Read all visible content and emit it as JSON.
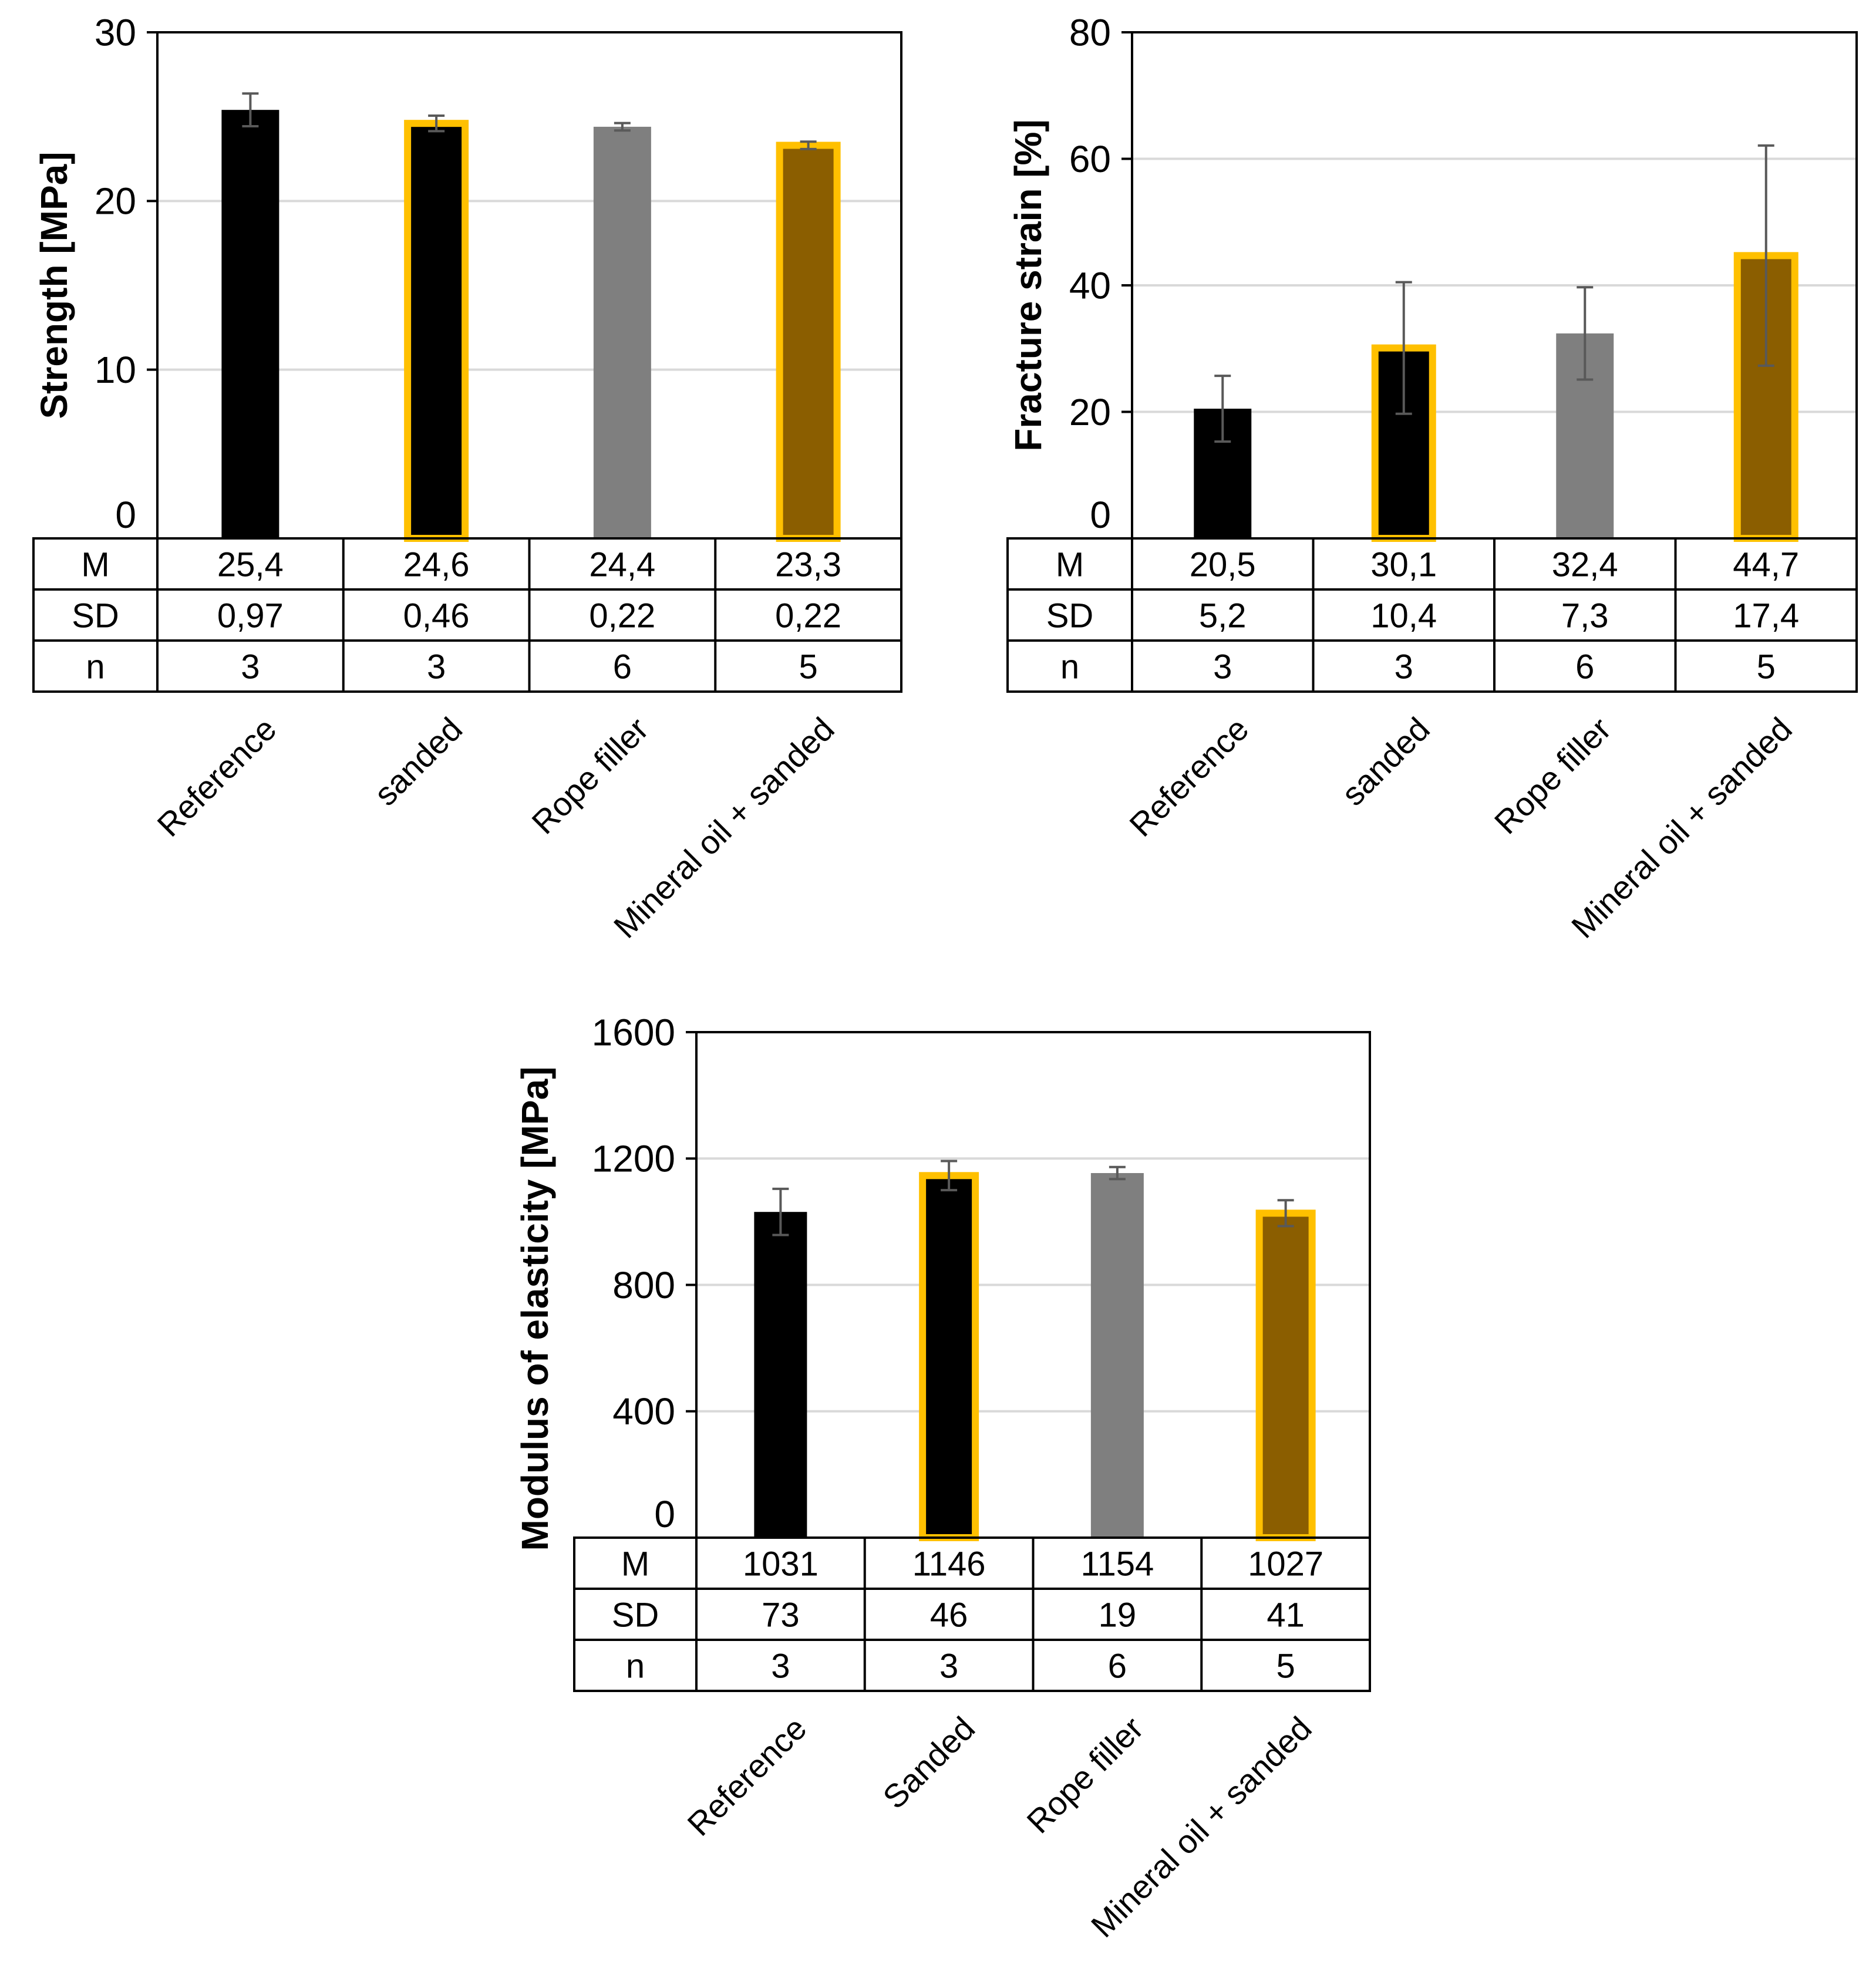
{
  "colors": {
    "black_bar": "#000000",
    "gray_bar": "#7f7f7f",
    "brown_bar": "#8b5e00",
    "highlight_border": "#ffc000",
    "gridline": "#d9d9d9",
    "error_bar": "#595959",
    "axis": "#000000"
  },
  "chart_data": [
    {
      "id": "strength",
      "type": "bar",
      "title": "",
      "ylabel": "Strength [MPa]",
      "ylim": [
        0,
        30
      ],
      "yticks": [
        "0",
        "10",
        "20",
        "30"
      ],
      "ytick_values": [
        0,
        10,
        20,
        30
      ],
      "grid": true,
      "categories": [
        "Reference",
        "sanded",
        "Rope filler",
        "Mineral oil + sanded"
      ],
      "values": [
        25.4,
        24.6,
        24.4,
        23.3
      ],
      "errors": [
        0.97,
        0.46,
        0.22,
        0.22
      ],
      "fills": [
        "black",
        "black",
        "gray",
        "brown"
      ],
      "highlighted": [
        false,
        true,
        false,
        true
      ],
      "table": {
        "row_labels": [
          "M",
          "SD",
          "n"
        ],
        "rows": [
          [
            "25,4",
            "24,6",
            "24,4",
            "23,3"
          ],
          [
            "0,97",
            "0,46",
            "0,22",
            "0,22"
          ],
          [
            "3",
            "3",
            "6",
            "5"
          ]
        ]
      }
    },
    {
      "id": "fracture",
      "type": "bar",
      "title": "",
      "ylabel": "Fracture strain [%]",
      "ylim": [
        0,
        80
      ],
      "yticks": [
        "0",
        "20",
        "40",
        "60",
        "80"
      ],
      "ytick_values": [
        0,
        20,
        40,
        60,
        80
      ],
      "grid": true,
      "categories": [
        "Reference",
        "sanded",
        "Rope filler",
        "Mineral oil + sanded"
      ],
      "values": [
        20.5,
        30.1,
        32.4,
        44.7
      ],
      "errors": [
        5.2,
        10.4,
        7.3,
        17.4
      ],
      "fills": [
        "black",
        "black",
        "gray",
        "brown"
      ],
      "highlighted": [
        false,
        true,
        false,
        true
      ],
      "table": {
        "row_labels": [
          "M",
          "SD",
          "n"
        ],
        "rows": [
          [
            "20,5",
            "30,1",
            "32,4",
            "44,7"
          ],
          [
            "5,2",
            "10,4",
            "7,3",
            "17,4"
          ],
          [
            "3",
            "3",
            "6",
            "5"
          ]
        ]
      }
    },
    {
      "id": "modulus",
      "type": "bar",
      "title": "",
      "ylabel": "Modulus of elasticity [MPa]",
      "ylim": [
        0,
        1600
      ],
      "yticks": [
        "0",
        "400",
        "800",
        "1200",
        "1600"
      ],
      "ytick_values": [
        0,
        400,
        800,
        1200,
        1600
      ],
      "grid": true,
      "categories": [
        "Reference",
        "Sanded",
        "Rope filler",
        "Mineral oil + sanded"
      ],
      "values": [
        1031,
        1146,
        1154,
        1027
      ],
      "errors": [
        73,
        46,
        19,
        41
      ],
      "fills": [
        "black",
        "black",
        "gray",
        "brown"
      ],
      "highlighted": [
        false,
        true,
        false,
        true
      ],
      "table": {
        "row_labels": [
          "M",
          "SD",
          "n"
        ],
        "rows": [
          [
            "1031",
            "1146",
            "1154",
            "1027"
          ],
          [
            "73",
            "46",
            "19",
            "41"
          ],
          [
            "3",
            "3",
            "6",
            "5"
          ]
        ]
      }
    }
  ]
}
